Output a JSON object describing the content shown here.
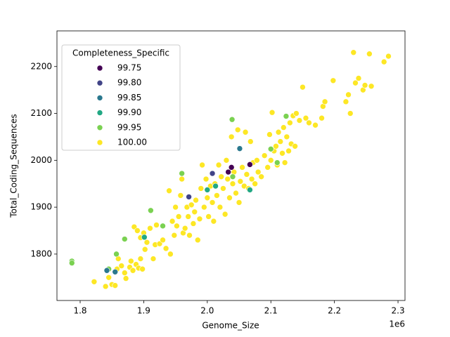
{
  "chart_data": {
    "type": "scatter",
    "x_label": "Genome_Size",
    "y_label": "Total_Coding_Sequences",
    "x_offset_label": "1e6",
    "legend_title": "Completeness_Specific",
    "legend_position": "upper left",
    "grid": false,
    "xlim": [
      1763500,
      2311000
    ],
    "ylim": [
      1701,
      2276
    ],
    "xticks": [
      {
        "value": 1800000,
        "label": "1.8"
      },
      {
        "value": 1900000,
        "label": "1.9"
      },
      {
        "value": 2000000,
        "label": "2.0"
      },
      {
        "value": 2100000,
        "label": "2.1"
      },
      {
        "value": 2200000,
        "label": "2.2"
      },
      {
        "value": 2300000,
        "label": "2.3"
      }
    ],
    "yticks": [
      1800,
      1900,
      2000,
      2100,
      2200
    ],
    "series": [
      {
        "name": "99.75",
        "color": "#440154",
        "x": [
          2033000,
          2067000,
          2038000
        ],
        "y": [
          1975,
          1991,
          1985
        ]
      },
      {
        "name": "99.80",
        "color": "#414487",
        "x": [
          1971000,
          2008000
        ],
        "y": [
          1922,
          1972
        ]
      },
      {
        "name": "99.85",
        "color": "#2a788e",
        "x": [
          1842000,
          1855000,
          2051000
        ],
        "y": [
          1765,
          1762,
          2025
        ]
      },
      {
        "name": "99.90",
        "color": "#22a884",
        "x": [
          1901000,
          2000000,
          2067000,
          2013000
        ],
        "y": [
          1836,
          1937,
          1937,
          1945
        ]
      },
      {
        "name": "99.95",
        "color": "#7ad151",
        "x": [
          1787000,
          1787000,
          1857000,
          1911000,
          1960000,
          2039000,
          2124000,
          2100000,
          1870000,
          1930000,
          2040000,
          2110000,
          1845000
        ],
        "y": [
          1785,
          1781,
          1800,
          1893,
          1972,
          2087,
          2094,
          2024,
          1832,
          1860,
          1965,
          1995,
          1768
        ]
      },
      {
        "name": "100.00",
        "color": "#fde725",
        "x": [
          1822000,
          1840000,
          1845000,
          1850000,
          1855000,
          1858000,
          1860000,
          1865000,
          1870000,
          1872000,
          1878000,
          1880000,
          1883000,
          1888000,
          1892000,
          1895000,
          1898000,
          1885000,
          1890000,
          1895000,
          1900000,
          1902000,
          1905000,
          1910000,
          1915000,
          1918000,
          1920000,
          1925000,
          1930000,
          1935000,
          1940000,
          1942000,
          1945000,
          1948000,
          1950000,
          1952000,
          1955000,
          1958000,
          1960000,
          1962000,
          1965000,
          1968000,
          1970000,
          1972000,
          1975000,
          1978000,
          1980000,
          1982000,
          1985000,
          1988000,
          1990000,
          1992000,
          1995000,
          1998000,
          2000000,
          2002000,
          2005000,
          2008000,
          2010000,
          2012000,
          2015000,
          2018000,
          2020000,
          2022000,
          2025000,
          2028000,
          2030000,
          2032000,
          2035000,
          2038000,
          2040000,
          2042000,
          2045000,
          2048000,
          2050000,
          2052000,
          2055000,
          2058000,
          2060000,
          2062000,
          2065000,
          2068000,
          2070000,
          2072000,
          2075000,
          2078000,
          2080000,
          2085000,
          2090000,
          2095000,
          2098000,
          2100000,
          2102000,
          2105000,
          2108000,
          2110000,
          2112000,
          2115000,
          2118000,
          2120000,
          2122000,
          2125000,
          2128000,
          2130000,
          2132000,
          2135000,
          2138000,
          2140000,
          2145000,
          2150000,
          2155000,
          2160000,
          2170000,
          2180000,
          2182000,
          2185000,
          2198000,
          2218000,
          2222000,
          2225000,
          2230000,
          2233000,
          2238000,
          2245000,
          2248000,
          2255000,
          2258000,
          2278000,
          2285000
        ],
        "y": [
          1741,
          1731,
          1750,
          1735,
          1733,
          1768,
          1790,
          1775,
          1760,
          1748,
          1772,
          1785,
          1765,
          1778,
          1770,
          1790,
          1768,
          1858,
          1850,
          1835,
          1845,
          1810,
          1825,
          1855,
          1790,
          1820,
          1862,
          1822,
          1830,
          1812,
          1935,
          1800,
          1870,
          1840,
          1900,
          1860,
          1880,
          1925,
          1960,
          1845,
          1855,
          1900,
          1880,
          1840,
          1905,
          1865,
          1890,
          1915,
          1830,
          1875,
          1940,
          1990,
          1900,
          1960,
          1920,
          1880,
          1945,
          1910,
          1870,
          1950,
          1925,
          1990,
          1900,
          1965,
          1940,
          1885,
          2000,
          1960,
          1920,
          2050,
          1950,
          1975,
          1930,
          2065,
          1910,
          1955,
          1985,
          1945,
          2060,
          1970,
          1940,
          2040,
          1960,
          1995,
          1950,
          2000,
          1975,
          1965,
          2010,
          1985,
          2055,
          2000,
          2102,
          2020,
          2030,
          1990,
          2060,
          2040,
          2015,
          2070,
          1995,
          2050,
          2020,
          2080,
          2035,
          2095,
          2030,
          2100,
          2085,
          2156,
          2090,
          2080,
          2075,
          2090,
          2115,
          2125,
          2170,
          2125,
          2140,
          2100,
          2230,
          2165,
          2175,
          2150,
          2160,
          2227,
          2158,
          2210,
          2222
        ]
      }
    ]
  }
}
